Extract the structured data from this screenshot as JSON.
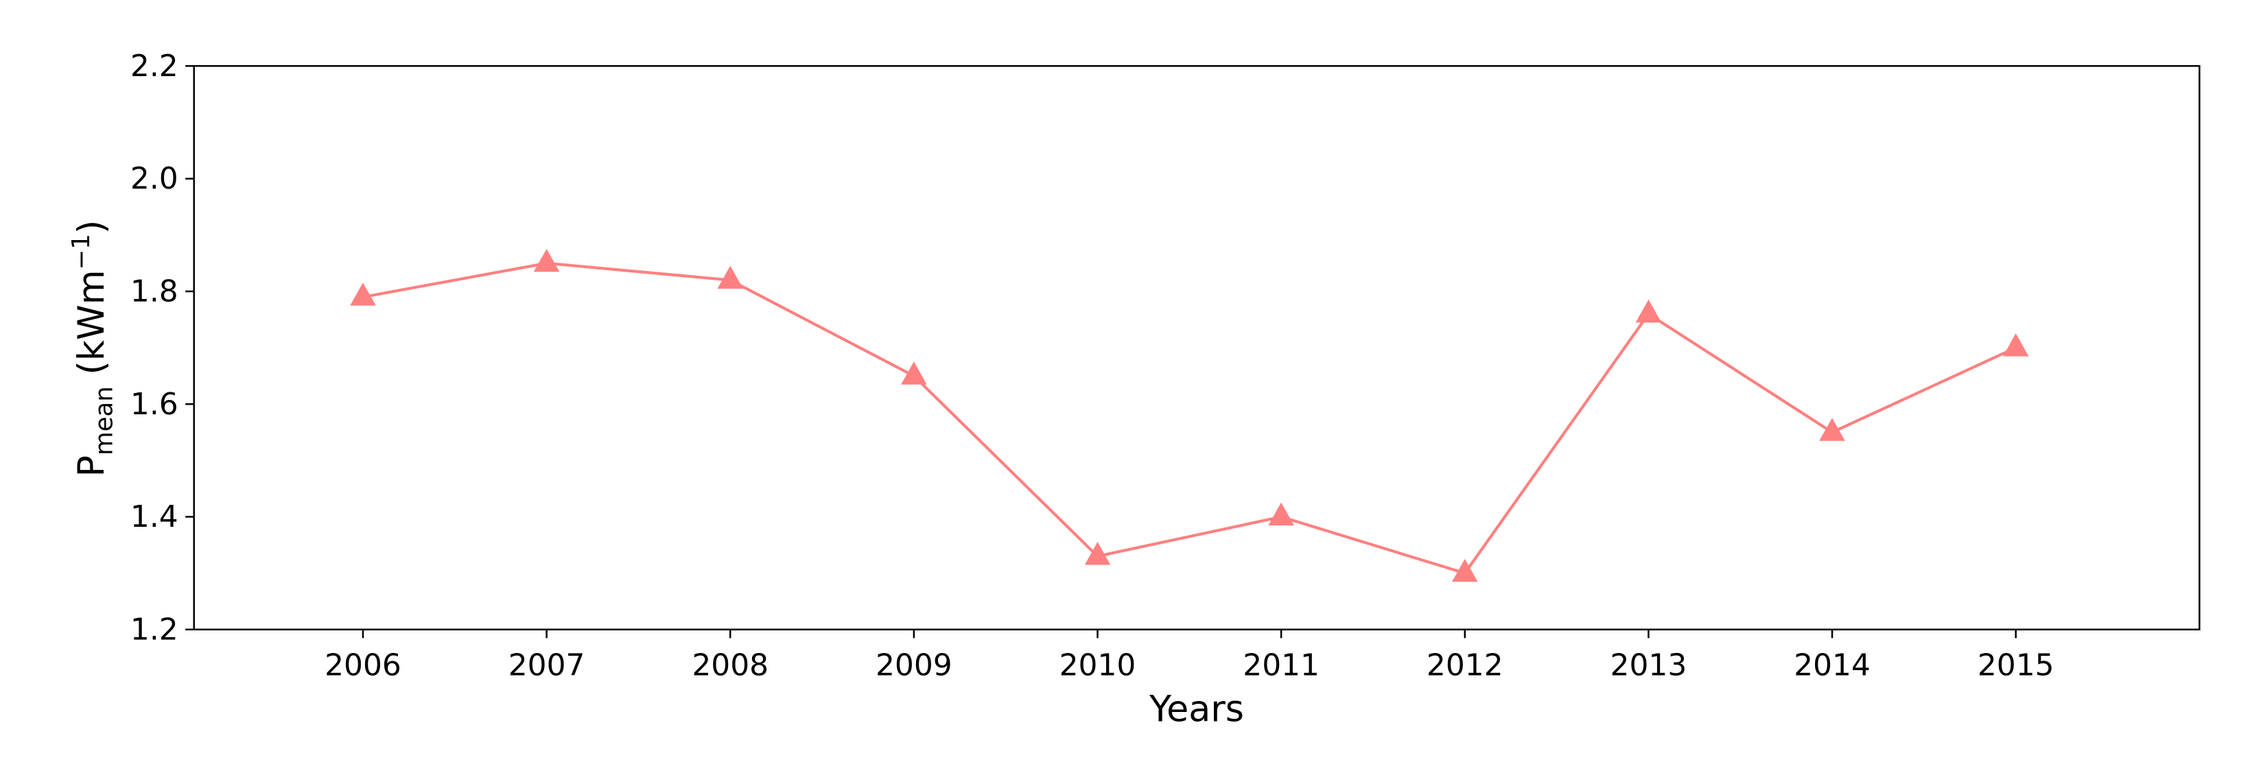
{
  "chart_data": {
    "type": "line",
    "ylabel_parts": [
      "P",
      "mean",
      " (kWm",
      "−1",
      ")"
    ],
    "xlabel": "Years",
    "x": [
      2006,
      2007,
      2008,
      2009,
      2010,
      2011,
      2012,
      2013,
      2014,
      2015
    ],
    "series": [
      {
        "color": "#ff8080",
        "marker": "triangle",
        "values": [
          1.79,
          1.85,
          1.82,
          1.65,
          1.33,
          1.4,
          1.3,
          1.76,
          1.55,
          1.7
        ]
      }
    ],
    "xlim": [
      2005.08,
      2016
    ],
    "xticks": [
      2006,
      2007,
      2008,
      2009,
      2010,
      2011,
      2012,
      2013,
      2014,
      2015
    ],
    "ylim": [
      1.2,
      2.2
    ],
    "yticks": [
      1.2,
      1.4,
      1.6,
      1.8,
      {
        "value": 2.0,
        "label": "2.0"
      },
      2.2
    ],
    "grid": false
  }
}
